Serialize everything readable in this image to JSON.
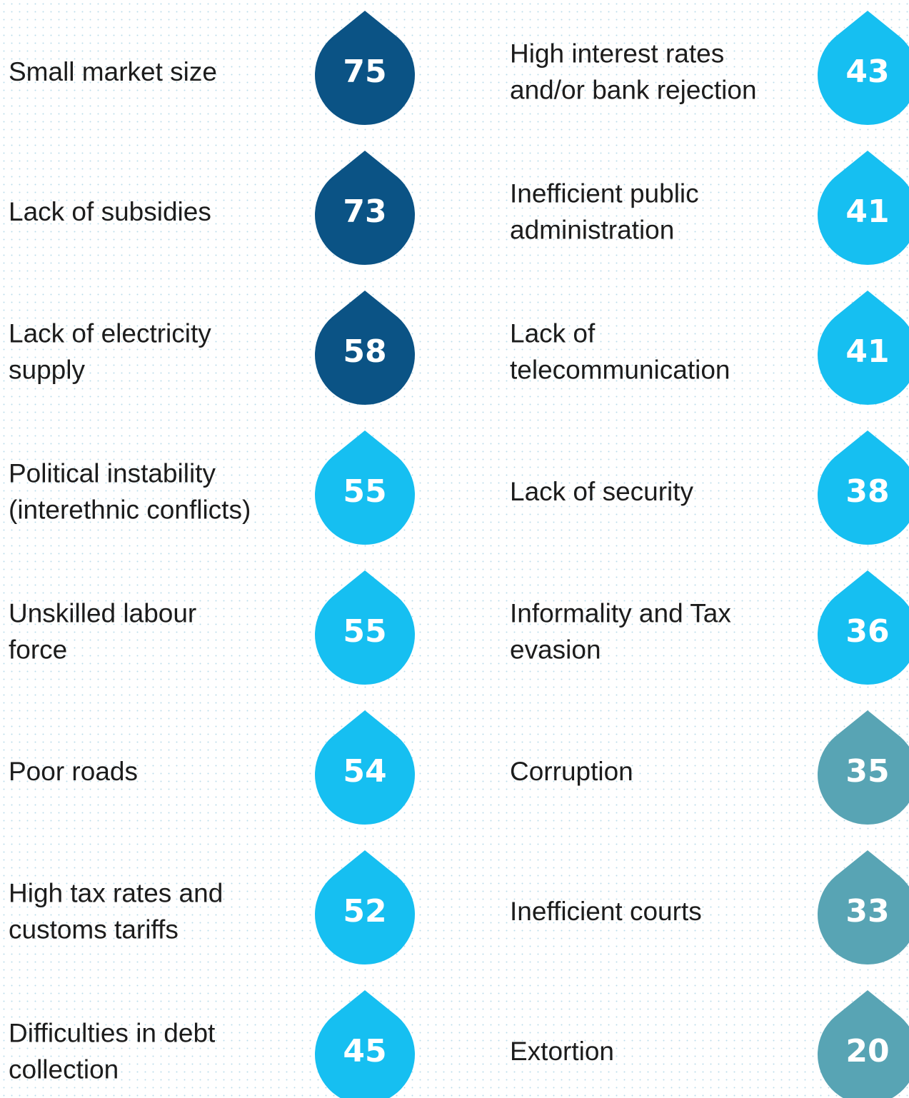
{
  "columns": [
    {
      "items": [
        {
          "label": [
            "Small market size"
          ],
          "value": 75,
          "color": "#0b5385"
        },
        {
          "label": [
            "Lack of subsidies"
          ],
          "value": 73,
          "color": "#0b5385"
        },
        {
          "label": [
            "Lack of electricity",
            "supply"
          ],
          "value": 58,
          "color": "#0b5385"
        },
        {
          "label": [
            "Political instability",
            "(interethnic conflicts)"
          ],
          "value": 55,
          "color": "#16bff1"
        },
        {
          "label": [
            "Unskilled labour",
            "force"
          ],
          "value": 55,
          "color": "#16bff1"
        },
        {
          "label": [
            "Poor roads"
          ],
          "value": 54,
          "color": "#16bff1"
        },
        {
          "label": [
            "High tax rates and",
            "customs tariffs"
          ],
          "value": 52,
          "color": "#16bff1"
        },
        {
          "label": [
            "Difficulties in debt",
            "collection"
          ],
          "value": 45,
          "color": "#16bff1"
        }
      ]
    },
    {
      "items": [
        {
          "label": [
            "High interest rates",
            "and/or bank rejection"
          ],
          "value": 43,
          "color": "#16bff1"
        },
        {
          "label": [
            "Inefficient public",
            "administration"
          ],
          "value": 41,
          "color": "#16bff1"
        },
        {
          "label": [
            "Lack of",
            "telecommunication"
          ],
          "value": 41,
          "color": "#16bff1"
        },
        {
          "label": [
            "Lack of security"
          ],
          "value": 38,
          "color": "#16bff1"
        },
        {
          "label": [
            "Informality and Tax",
            "evasion"
          ],
          "value": 36,
          "color": "#16bff1"
        },
        {
          "label": [
            "Corruption"
          ],
          "value": 35,
          "color": "#58a4b4"
        },
        {
          "label": [
            "Inefficient courts"
          ],
          "value": 33,
          "color": "#58a4b4"
        },
        {
          "label": [
            "Extortion"
          ],
          "value": 20,
          "color": "#58a4b4"
        }
      ]
    }
  ]
}
